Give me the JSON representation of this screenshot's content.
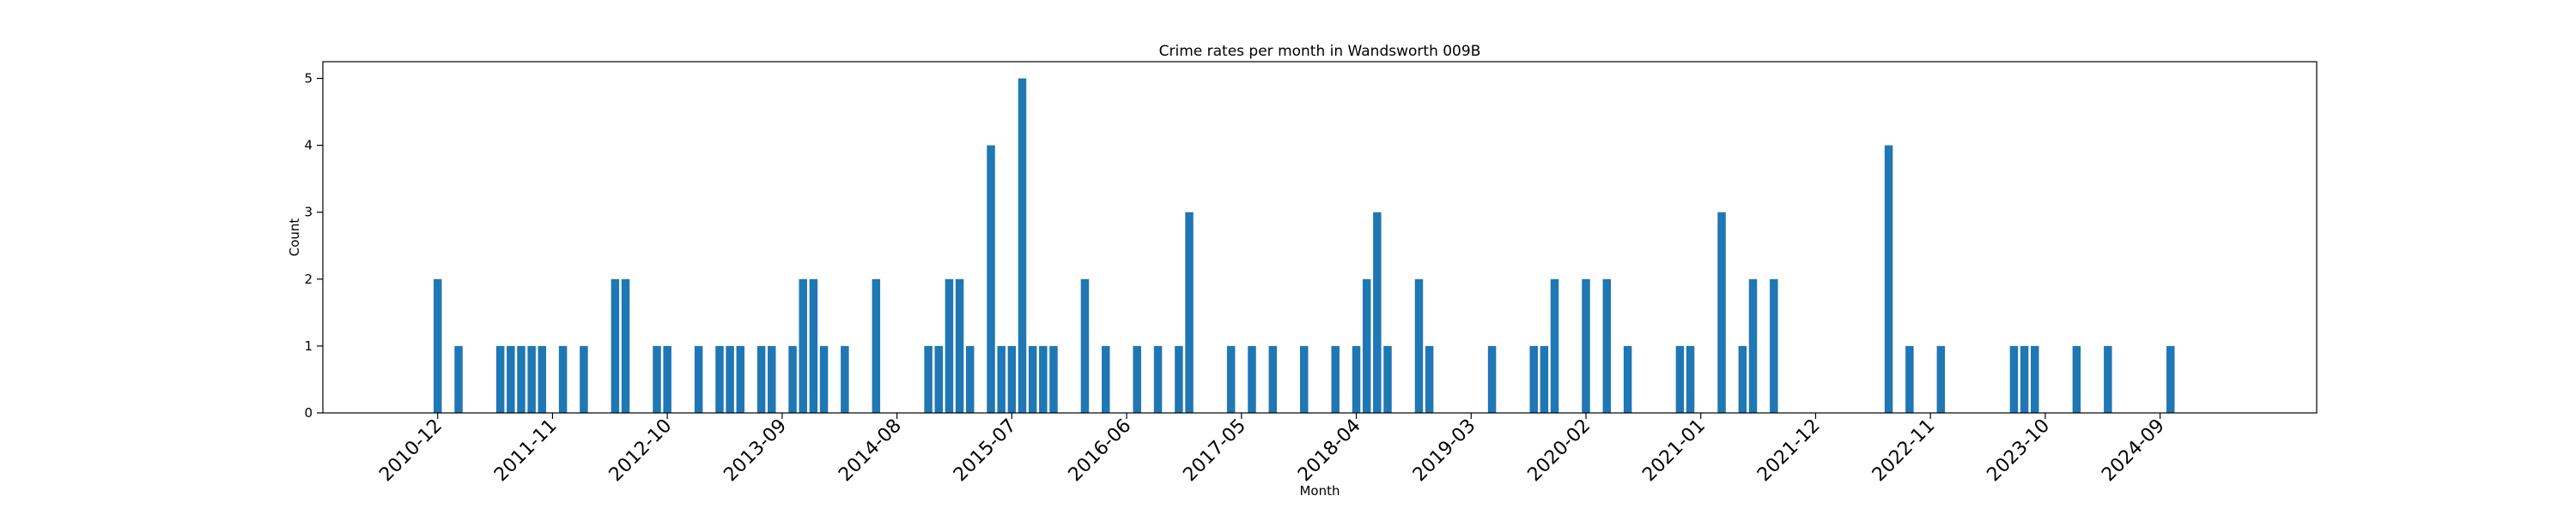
{
  "chart_data": {
    "type": "bar",
    "title": "Crime rates per month in Wandsworth 009B",
    "xlabel": "Month",
    "ylabel": "Count",
    "ylim": [
      0,
      5.25
    ],
    "yticks": [
      0,
      1,
      2,
      3,
      4,
      5
    ],
    "xlim": [
      "2010-01",
      "2025-12"
    ],
    "xticks": [
      "2010-12",
      "2011-11",
      "2012-10",
      "2013-09",
      "2014-08",
      "2015-07",
      "2016-06",
      "2017-05",
      "2018-04",
      "2019-03",
      "2020-02",
      "2021-01",
      "2021-12",
      "2022-11",
      "2023-10",
      "2024-09"
    ],
    "bar_color": "#1f77b4",
    "grid": false,
    "legend": "none",
    "series": [
      {
        "x": [
          "2010-12",
          "2011-02",
          "2011-06",
          "2011-07",
          "2011-08",
          "2011-09",
          "2011-10",
          "2011-12",
          "2012-02",
          "2012-05",
          "2012-06",
          "2012-09",
          "2012-10",
          "2013-01",
          "2013-03",
          "2013-04",
          "2013-05",
          "2013-07",
          "2013-08",
          "2013-10",
          "2013-11",
          "2013-12",
          "2014-01",
          "2014-03",
          "2014-06",
          "2014-11",
          "2014-12",
          "2015-01",
          "2015-02",
          "2015-03",
          "2015-05",
          "2015-06",
          "2015-07",
          "2015-08",
          "2015-09",
          "2015-10",
          "2015-11",
          "2016-02",
          "2016-04",
          "2016-07",
          "2016-09",
          "2016-11",
          "2016-12",
          "2017-04",
          "2017-06",
          "2017-08",
          "2017-11",
          "2018-02",
          "2018-04",
          "2018-05",
          "2018-06",
          "2018-07",
          "2018-10",
          "2018-11",
          "2019-05",
          "2019-09",
          "2019-10",
          "2019-11",
          "2020-02",
          "2020-04",
          "2020-06",
          "2020-11",
          "2020-12",
          "2021-03",
          "2021-05",
          "2021-06",
          "2021-08",
          "2022-07",
          "2022-09",
          "2022-12",
          "2023-07",
          "2023-08",
          "2023-09",
          "2024-01",
          "2024-04",
          "2024-10"
        ],
        "values": [
          2,
          1,
          1,
          1,
          1,
          1,
          1,
          1,
          1,
          2,
          2,
          1,
          1,
          1,
          1,
          1,
          1,
          1,
          1,
          1,
          2,
          2,
          1,
          1,
          2,
          1,
          1,
          2,
          2,
          1,
          4,
          1,
          1,
          5,
          1,
          1,
          1,
          2,
          1,
          1,
          1,
          1,
          3,
          1,
          1,
          1,
          1,
          1,
          1,
          2,
          3,
          1,
          2,
          1,
          1,
          1,
          1,
          2,
          2,
          2,
          1,
          1,
          1,
          3,
          1,
          2,
          2,
          4,
          1,
          1,
          1,
          1,
          1,
          1,
          1,
          1
        ]
      }
    ]
  }
}
